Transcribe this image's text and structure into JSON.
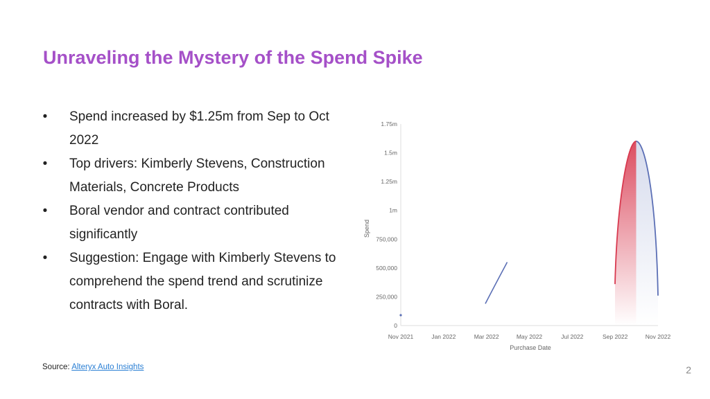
{
  "slide": {
    "title": "Unraveling the Mystery of the Spend Spike",
    "bullets": [
      {
        "marker": "•",
        "text": "Spend increased by $1.25m from Sep to Oct 2022"
      },
      {
        "marker": "•",
        "text": "Top drivers: Kimberly Stevens, Construction Materials, Concrete Products"
      },
      {
        "marker": "•",
        "text": "Boral vendor and contract contributed significantly"
      },
      {
        "marker": "•",
        "text": "Suggestion: Engage with Kimberly Stevens to comprehend the spend trend and scrutinize contracts with Boral."
      }
    ],
    "source_label": "Source: ",
    "source_link": "Alteryx Auto Insights",
    "page_number": "2"
  },
  "chart_data": {
    "type": "line",
    "xlabel": "Purchase Date",
    "ylabel": "Spend",
    "x_ticks": [
      "Nov 2021",
      "Jan 2022",
      "Mar 2022",
      "May 2022",
      "Jul 2022",
      "Sep 2022",
      "Nov 2022"
    ],
    "y_ticks": [
      "0",
      "250,000",
      "500,000",
      "750,000",
      "1m",
      "1.25m",
      "1.5m",
      "1.75m"
    ],
    "ylim": [
      0,
      1750000
    ],
    "grid": false,
    "colors": {
      "line": "#5b6fb5",
      "spike": "#d8394f",
      "axis_text": "#666666"
    },
    "series": [
      {
        "x": [
          "2021-11-01",
          "2022-03-01",
          "2022-03-15",
          "2022-04-01",
          "2022-09-01",
          "2022-09-15",
          "2022-10-01",
          "2022-10-15",
          "2022-11-01"
        ],
        "y": [
          90000,
          190000,
          380000,
          550000,
          360000,
          1200000,
          1600000,
          1200000,
          260000
        ]
      }
    ]
  }
}
